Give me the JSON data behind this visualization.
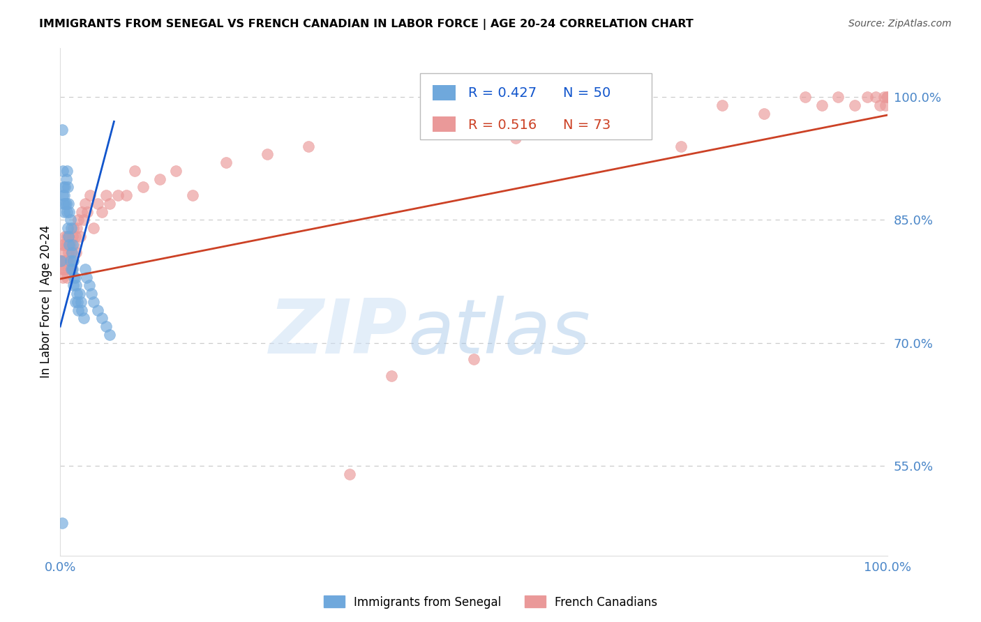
{
  "title": "IMMIGRANTS FROM SENEGAL VS FRENCH CANADIAN IN LABOR FORCE | AGE 20-24 CORRELATION CHART",
  "source": "Source: ZipAtlas.com",
  "ylabel": "In Labor Force | Age 20-24",
  "yticks": [
    0.55,
    0.7,
    0.85,
    1.0
  ],
  "ytick_labels": [
    "55.0%",
    "70.0%",
    "85.0%",
    "100.0%"
  ],
  "legend1_r": "R = 0.427",
  "legend1_n": "N = 50",
  "legend2_r": "R = 0.516",
  "legend2_n": "N = 73",
  "blue_color": "#6fa8dc",
  "pink_color": "#ea9999",
  "blue_line_color": "#1155cc",
  "pink_line_color": "#cc4125",
  "tick_color": "#4a86c8",
  "grid_color": "#cccccc",
  "senegal_x": [
    0.001,
    0.002,
    0.003,
    0.003,
    0.004,
    0.004,
    0.005,
    0.005,
    0.006,
    0.006,
    0.007,
    0.007,
    0.008,
    0.008,
    0.009,
    0.009,
    0.01,
    0.01,
    0.011,
    0.011,
    0.012,
    0.012,
    0.013,
    0.013,
    0.014,
    0.015,
    0.015,
    0.016,
    0.016,
    0.017,
    0.018,
    0.018,
    0.019,
    0.02,
    0.021,
    0.022,
    0.023,
    0.025,
    0.026,
    0.028,
    0.03,
    0.032,
    0.035,
    0.038,
    0.04,
    0.045,
    0.05,
    0.055,
    0.06,
    0.002
  ],
  "senegal_y": [
    0.8,
    0.96,
    0.91,
    0.88,
    0.89,
    0.87,
    0.88,
    0.86,
    0.89,
    0.87,
    0.9,
    0.87,
    0.91,
    0.86,
    0.89,
    0.84,
    0.87,
    0.83,
    0.86,
    0.82,
    0.85,
    0.8,
    0.84,
    0.79,
    0.81,
    0.82,
    0.79,
    0.8,
    0.77,
    0.78,
    0.78,
    0.75,
    0.77,
    0.76,
    0.75,
    0.74,
    0.76,
    0.75,
    0.74,
    0.73,
    0.79,
    0.78,
    0.77,
    0.76,
    0.75,
    0.74,
    0.73,
    0.72,
    0.71,
    0.48
  ],
  "french_x": [
    0.001,
    0.002,
    0.002,
    0.003,
    0.003,
    0.004,
    0.004,
    0.005,
    0.005,
    0.006,
    0.006,
    0.007,
    0.007,
    0.008,
    0.008,
    0.009,
    0.009,
    0.01,
    0.01,
    0.011,
    0.012,
    0.012,
    0.013,
    0.014,
    0.015,
    0.016,
    0.017,
    0.018,
    0.019,
    0.02,
    0.022,
    0.024,
    0.026,
    0.028,
    0.03,
    0.033,
    0.036,
    0.04,
    0.045,
    0.05,
    0.055,
    0.06,
    0.07,
    0.08,
    0.09,
    0.1,
    0.12,
    0.14,
    0.16,
    0.2,
    0.25,
    0.3,
    0.35,
    0.4,
    0.5,
    0.55,
    0.6,
    0.65,
    0.7,
    0.75,
    0.8,
    0.85,
    0.9,
    0.92,
    0.94,
    0.96,
    0.975,
    0.985,
    0.99,
    0.995,
    0.997,
    0.999,
    1.0
  ],
  "french_y": [
    0.8,
    0.82,
    0.79,
    0.8,
    0.78,
    0.81,
    0.79,
    0.82,
    0.8,
    0.83,
    0.79,
    0.82,
    0.8,
    0.83,
    0.78,
    0.82,
    0.8,
    0.81,
    0.79,
    0.83,
    0.82,
    0.8,
    0.81,
    0.79,
    0.83,
    0.84,
    0.82,
    0.83,
    0.81,
    0.84,
    0.85,
    0.83,
    0.86,
    0.85,
    0.87,
    0.86,
    0.88,
    0.84,
    0.87,
    0.86,
    0.88,
    0.87,
    0.88,
    0.88,
    0.91,
    0.89,
    0.9,
    0.91,
    0.88,
    0.92,
    0.93,
    0.94,
    0.54,
    0.66,
    0.68,
    0.95,
    0.96,
    0.97,
    0.98,
    0.94,
    0.99,
    0.98,
    1.0,
    0.99,
    1.0,
    0.99,
    1.0,
    1.0,
    0.99,
    1.0,
    0.99,
    1.0,
    1.0
  ],
  "blue_line_x": [
    0.0,
    0.065
  ],
  "blue_line_y": [
    0.72,
    0.97
  ],
  "pink_line_x": [
    0.0,
    1.0
  ],
  "pink_line_y": [
    0.778,
    0.978
  ],
  "xlim": [
    0.0,
    1.0
  ],
  "ylim": [
    0.44,
    1.06
  ]
}
